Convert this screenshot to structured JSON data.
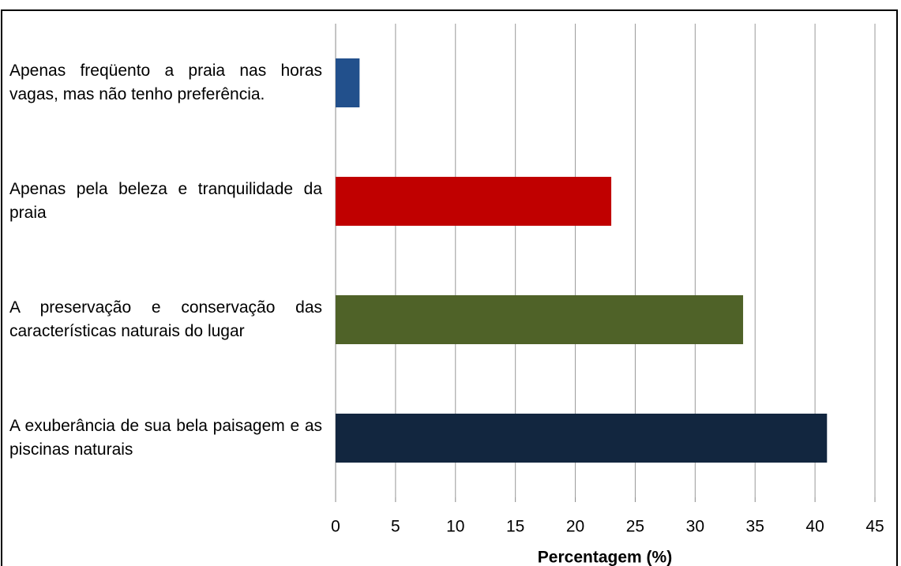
{
  "chart_data": {
    "type": "hbar",
    "x_label": "Percentagem (%)",
    "categories": [
      "Apenas freqüento a praia nas horas vagas, mas não tenho preferência.",
      "Apenas pela beleza e tranquilidade da praia",
      "A preservação e conservação das características naturais do lugar",
      "A exuberância de sua bela paisagem e as piscinas naturais"
    ],
    "values": [
      2,
      23,
      34,
      41
    ],
    "colors": [
      "#22508c",
      "#c00000",
      "#4f6228",
      "#12263f"
    ],
    "xlim": [
      0,
      45
    ],
    "xticks": [
      0,
      5,
      10,
      15,
      20,
      25,
      30,
      35,
      40,
      45
    ],
    "grid": true
  }
}
